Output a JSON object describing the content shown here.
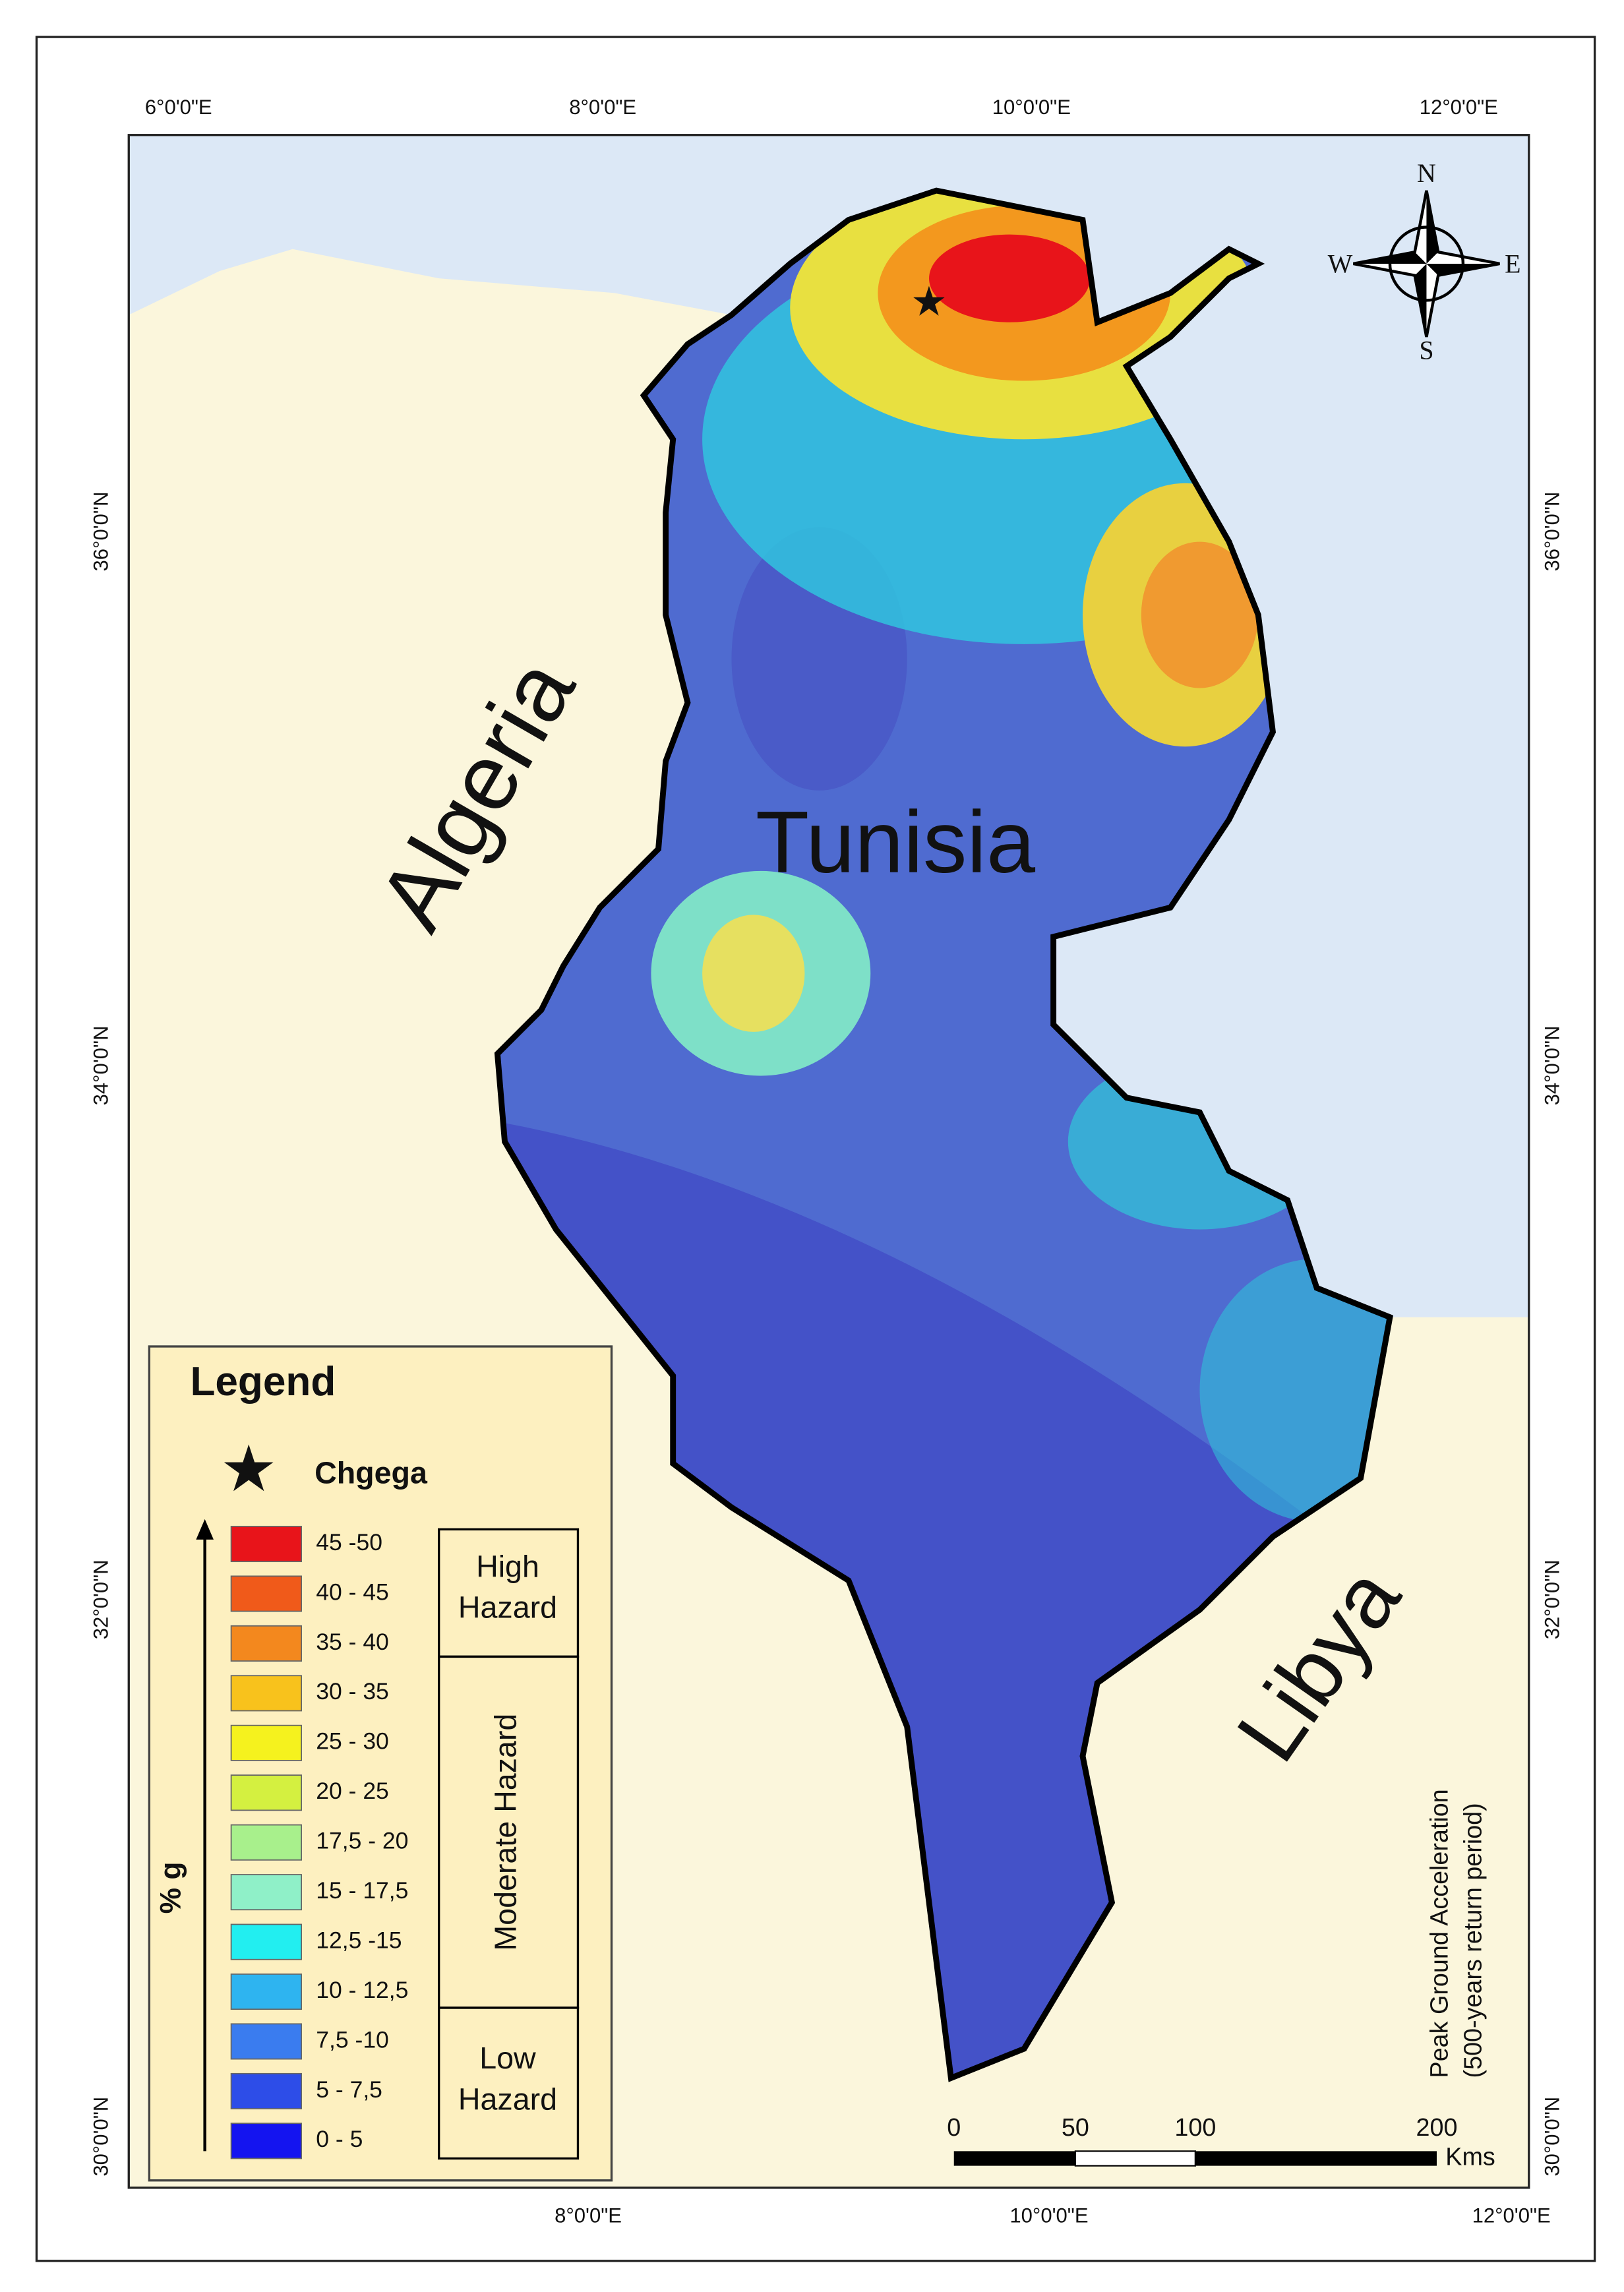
{
  "map": {
    "countries": [
      "Algeria",
      "Tunisia",
      "Libya"
    ],
    "title": "Peak Ground Acceleration",
    "subtitle": "(500-years return period)"
  },
  "graticule": {
    "top": [
      "6°0'0\"E",
      "8°0'0\"E",
      "10°0'0\"E",
      "12°0'0\"E"
    ],
    "bottom": [
      "8°0'0\"E",
      "10°0'0\"E",
      "12°0'0\"E"
    ],
    "left": [
      "36°0'0\"N",
      "34°0'0\"N",
      "32°0'0\"N",
      "30°0'0\"N"
    ],
    "right": [
      "36°0'0\"N",
      "34°0'0\"N",
      "32°0'0\"N",
      "30°0'0\"N"
    ]
  },
  "compass": [
    "N",
    "E",
    "S",
    "W"
  ],
  "legend": {
    "title": "Legend",
    "marker": "Chgega",
    "axis_label": "% g",
    "classes": [
      {
        "label": "45 -50",
        "color": "#e8141a"
      },
      {
        "label": "40 - 45",
        "color": "#f05a1a"
      },
      {
        "label": "35 - 40",
        "color": "#f3881e"
      },
      {
        "label": "30 - 35",
        "color": "#f8c21c"
      },
      {
        "label": "25 - 30",
        "color": "#f5f21e"
      },
      {
        "label": "20 - 25",
        "color": "#d4f040"
      },
      {
        "label": "17,5 - 20",
        "color": "#a8f08c"
      },
      {
        "label": "15 - 17,5",
        "color": "#8ff0c8"
      },
      {
        "label": "12,5 -15",
        "color": "#22eef0"
      },
      {
        "label": "10 - 12,5",
        "color": "#2eb4f0"
      },
      {
        "label": "7,5 -10",
        "color": "#3a7cef"
      },
      {
        "label": "5 - 7,5",
        "color": "#2d4de8"
      },
      {
        "label": "0 - 5",
        "color": "#1414f0"
      }
    ],
    "groups": [
      [
        "High",
        "Hazard"
      ],
      [
        "Moderate Hazard"
      ],
      [
        "Low",
        "Hazard"
      ]
    ]
  },
  "scale_bar": {
    "ticks": [
      0,
      50,
      100,
      200
    ],
    "unit": "Kms"
  }
}
